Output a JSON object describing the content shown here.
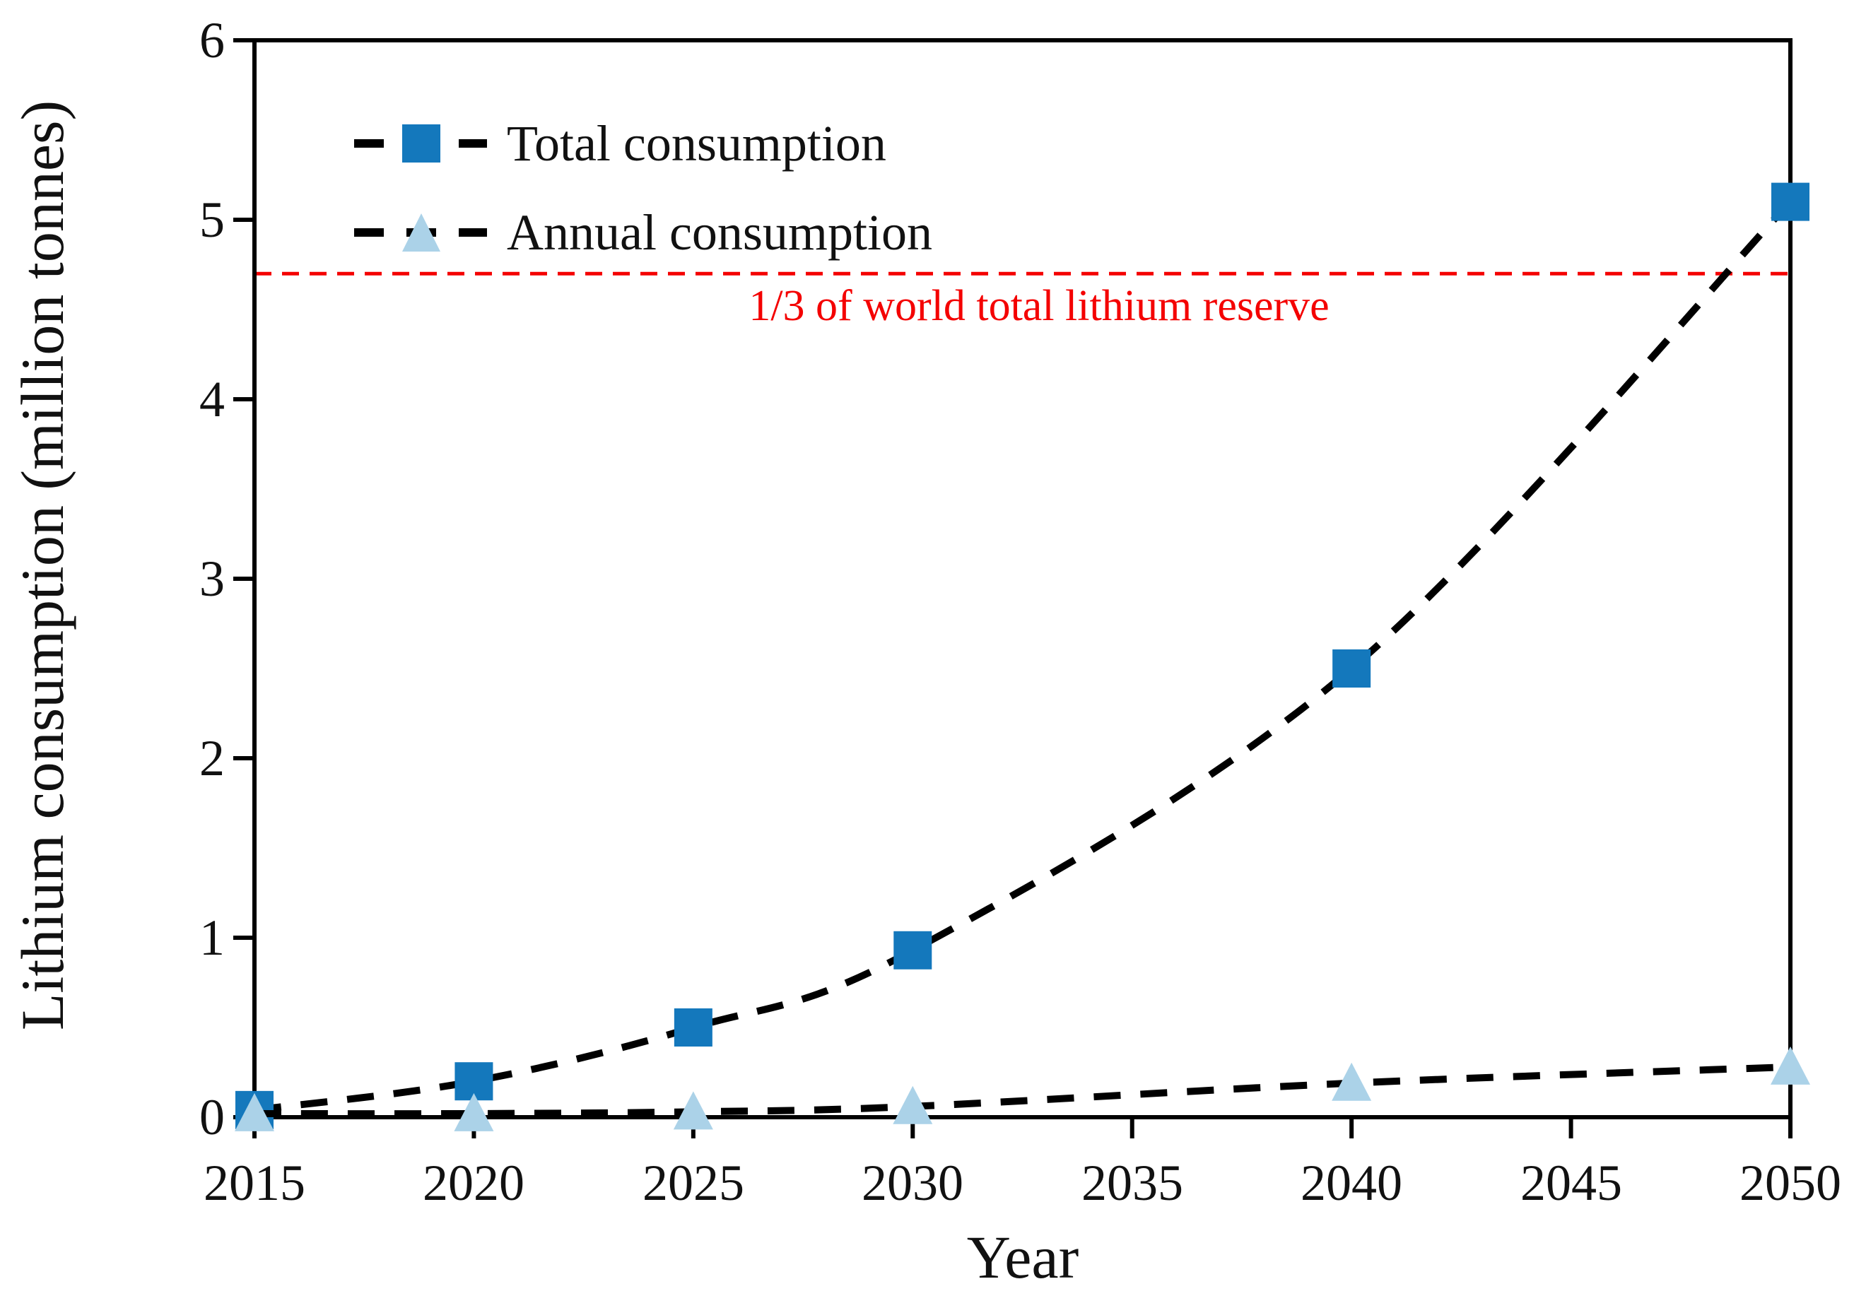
{
  "chart_data": {
    "type": "line",
    "title": "",
    "xlabel": "Year",
    "ylabel": "Lithium consumption (million tonnes)",
    "xlim": [
      2015,
      2050
    ],
    "ylim": [
      0,
      6
    ],
    "grid": false,
    "legend_position": "upper-left-inside",
    "xticklabels": [
      "2015",
      "2020",
      "2025",
      "2030",
      "2035",
      "2040",
      "2045",
      "2050"
    ],
    "yticklabels": [
      "0",
      "1",
      "2",
      "3",
      "4",
      "5",
      "6"
    ],
    "xticks": [
      2015,
      2020,
      2025,
      2030,
      2035,
      2040,
      2045,
      2050
    ],
    "yticks": [
      0,
      1,
      2,
      3,
      4,
      5,
      6
    ],
    "series": [
      {
        "name": "Total consumption",
        "marker": "square",
        "marker_color": "#1478bc",
        "line_style": "dashed",
        "line_color": "#000000",
        "x": [
          2015,
          2020,
          2025,
          2030,
          2040,
          2050
        ],
        "y": [
          0.04,
          0.2,
          0.5,
          0.93,
          2.5,
          5.1
        ]
      },
      {
        "name": "Annual consumption",
        "marker": "triangle",
        "marker_color": "#abd2e8",
        "line_style": "dashed",
        "line_color": "#000000",
        "x": [
          2015,
          2020,
          2025,
          2030,
          2040,
          2050
        ],
        "y": [
          0.02,
          0.02,
          0.03,
          0.06,
          0.19,
          0.28
        ]
      }
    ],
    "reference_line": {
      "value": 4.7,
      "style": "dashed",
      "color": "#f40000",
      "label": "1/3 of world total lithium reserve"
    }
  }
}
